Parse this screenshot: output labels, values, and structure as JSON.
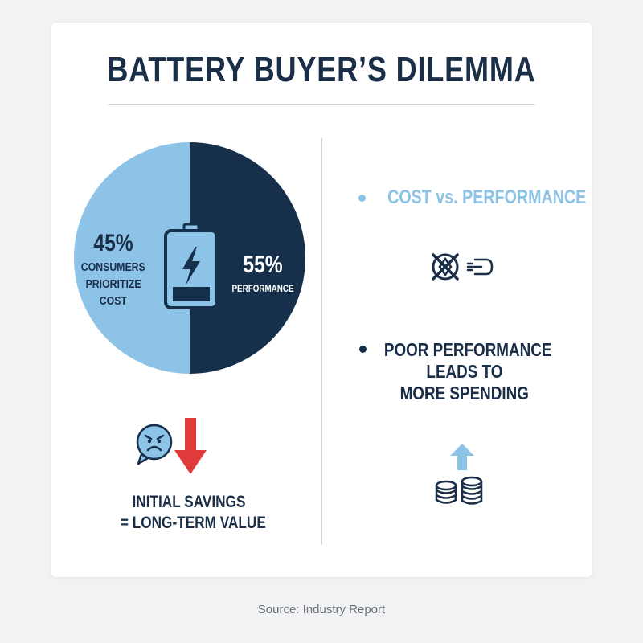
{
  "title": "BATTERY BUYER’S DILEMMA",
  "chart_data": {
    "type": "pie",
    "categories": [
      "Consumers prioritize cost",
      "Performance"
    ],
    "values": [
      45,
      55
    ],
    "colors": [
      "#8ec3e8",
      "#16304c"
    ],
    "labels": [
      {
        "value": "45%",
        "text": [
          "CONSUMERS",
          "PRIORITIZE",
          "COST"
        ]
      },
      {
        "value": "55%",
        "text": [
          "PERFORMANCE"
        ]
      }
    ],
    "center_icon": "battery-charging-icon"
  },
  "left_bottom": {
    "icons": [
      "angry-speech-bubble-icon",
      "arrow-down-icon"
    ],
    "line1": "INITIAL SAVINGS",
    "line2": "= LONG-TERM VALUE"
  },
  "right": {
    "point1": {
      "text": "COST vs. PERFORMANCE",
      "color": "#8ec3e8",
      "icons": [
        "crossed-out-cost-icon",
        "speed-magnet-icon"
      ]
    },
    "point2": {
      "lines": [
        "POOR PERFORMANCE",
        "LEADS TO",
        "MORE SPENDING"
      ],
      "color": "#1a2e47",
      "icons": [
        "arrow-up-icon",
        "coin-stacks-icon"
      ]
    }
  },
  "source": "Source: Industry Report",
  "colors": {
    "navy": "#16304c",
    "light_blue": "#8ec3e8",
    "red": "#e03b3b"
  }
}
